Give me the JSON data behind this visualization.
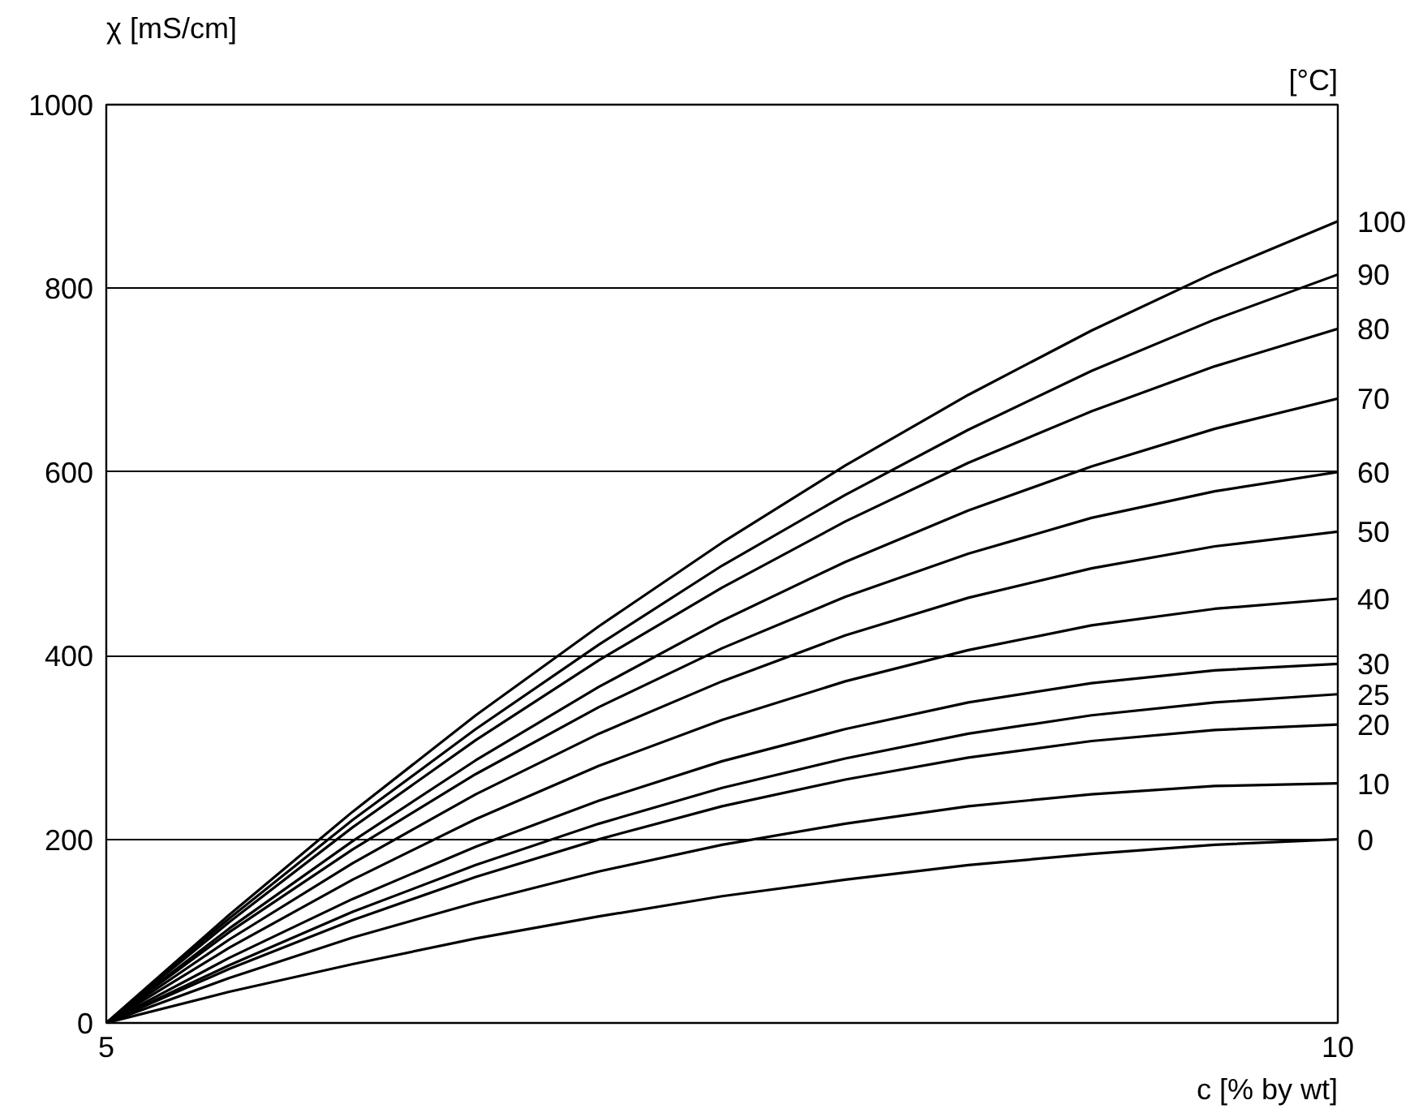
{
  "chart_data": {
    "type": "line",
    "xlabel": "c [% by wt]",
    "ylabel": "χ [mS/cm]",
    "legend_title": "[°C]",
    "x": [
      5,
      5.5,
      6,
      6.5,
      7,
      7.5,
      8,
      8.5,
      9,
      9.5,
      10
    ],
    "xlim": [
      5,
      10
    ],
    "xticks": [
      5,
      10
    ],
    "ylim": [
      0,
      1000
    ],
    "yticks": [
      0,
      200,
      400,
      600,
      800,
      1000
    ],
    "grid": "y",
    "series": [
      {
        "name": "100",
        "color": "#000000",
        "values": [
          0,
          118,
          230,
          335,
          432,
          523,
          607,
          684,
          754,
          817,
          873
        ]
      },
      {
        "name": "90",
        "color": "#000000",
        "values": [
          0,
          114,
          221,
          320,
          412,
          498,
          575,
          646,
          710,
          766,
          815
        ]
      },
      {
        "name": "80",
        "color": "#000000",
        "values": [
          0,
          110,
          213,
          308,
          395,
          474,
          546,
          610,
          666,
          715,
          756
        ]
      },
      {
        "name": "70",
        "color": "#000000",
        "values": [
          0,
          103,
          198,
          286,
          366,
          438,
          502,
          558,
          606,
          647,
          680
        ]
      },
      {
        "name": "60",
        "color": "#000000",
        "values": [
          0,
          99,
          189,
          271,
          344,
          408,
          464,
          511,
          550,
          579,
          600
        ]
      },
      {
        "name": "50",
        "color": "#000000",
        "values": [
          0,
          91,
          174,
          249,
          315,
          372,
          422,
          463,
          495,
          519,
          535
        ]
      },
      {
        "name": "40",
        "color": "#000000",
        "values": [
          0,
          82,
          156,
          222,
          280,
          330,
          372,
          406,
          433,
          451,
          462
        ]
      },
      {
        "name": "30",
        "color": "#000000",
        "values": [
          0,
          71,
          135,
          192,
          242,
          285,
          320,
          349,
          370,
          384,
          391
        ]
      },
      {
        "name": "25",
        "color": "#000000",
        "values": [
          0,
          63,
          121,
          172,
          217,
          256,
          288,
          315,
          335,
          349,
          358
        ]
      },
      {
        "name": "20",
        "color": "#000000",
        "values": [
          0,
          59,
          112,
          159,
          200,
          236,
          265,
          289,
          307,
          319,
          325
        ]
      },
      {
        "name": "10",
        "color": "#000000",
        "values": [
          0,
          49,
          93,
          131,
          165,
          194,
          217,
          236,
          249,
          258,
          261
        ]
      },
      {
        "name": "0",
        "color": "#000000",
        "values": [
          0,
          34,
          64,
          92,
          116,
          138,
          156,
          172,
          184,
          194,
          200
        ]
      }
    ]
  }
}
